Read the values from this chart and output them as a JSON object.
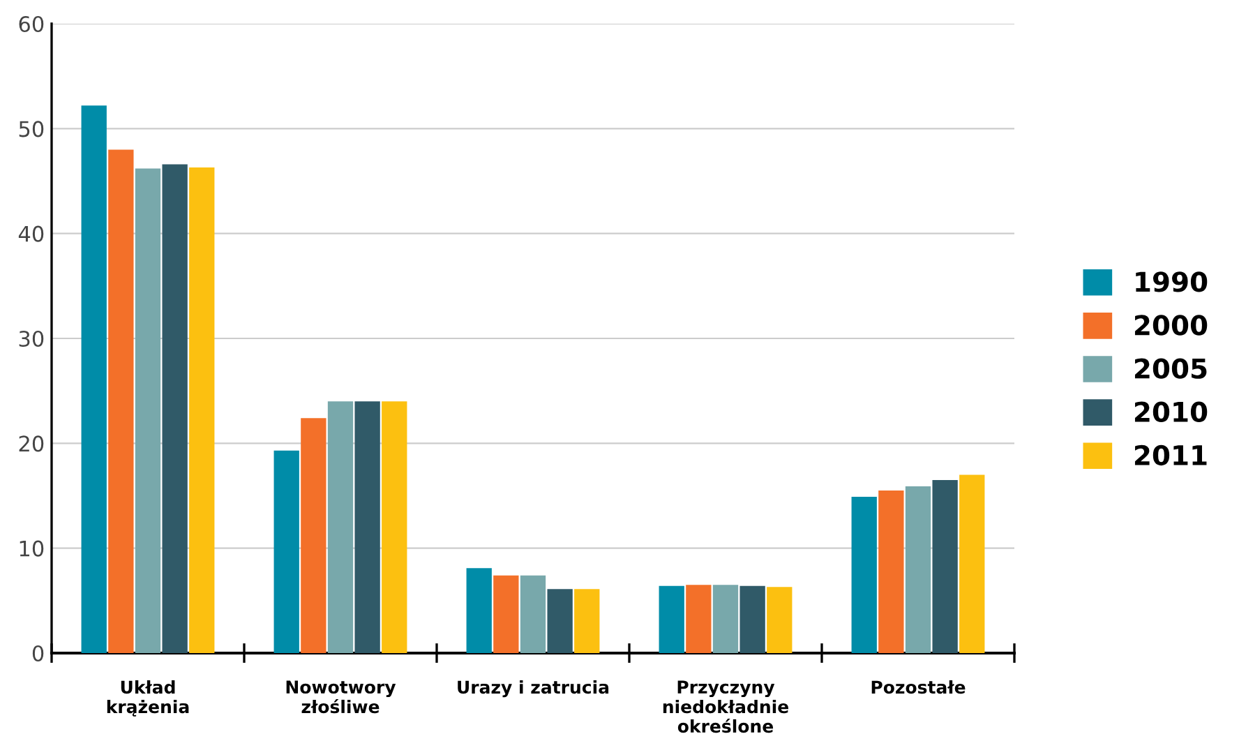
{
  "chart_data": {
    "type": "bar",
    "categories": [
      "Układ\nkrążenia",
      "Nowotwory\nzłośliwe",
      "Urazy i zatrucia",
      "Przyczyny\nniedokładnie\nokreślone",
      "Pozostałe"
    ],
    "series": [
      {
        "name": "1990",
        "color": "#008ca8",
        "values": [
          52.2,
          19.3,
          8.1,
          6.4,
          14.9
        ]
      },
      {
        "name": "2000",
        "color": "#f37029",
        "values": [
          48.0,
          22.4,
          7.4,
          6.5,
          15.5
        ]
      },
      {
        "name": "2005",
        "color": "#78a8ab",
        "values": [
          46.2,
          24.0,
          7.4,
          6.5,
          15.9
        ]
      },
      {
        "name": "2010",
        "color": "#305a68",
        "values": [
          46.6,
          24.0,
          6.1,
          6.4,
          16.5
        ]
      },
      {
        "name": "2011",
        "color": "#fcc010",
        "values": [
          46.3,
          24.0,
          6.1,
          6.3,
          17.0
        ]
      }
    ],
    "ylim": [
      0,
      60
    ],
    "yticks": [
      0,
      10,
      20,
      30,
      40,
      50,
      60
    ],
    "grid": "y",
    "legend": "right"
  }
}
